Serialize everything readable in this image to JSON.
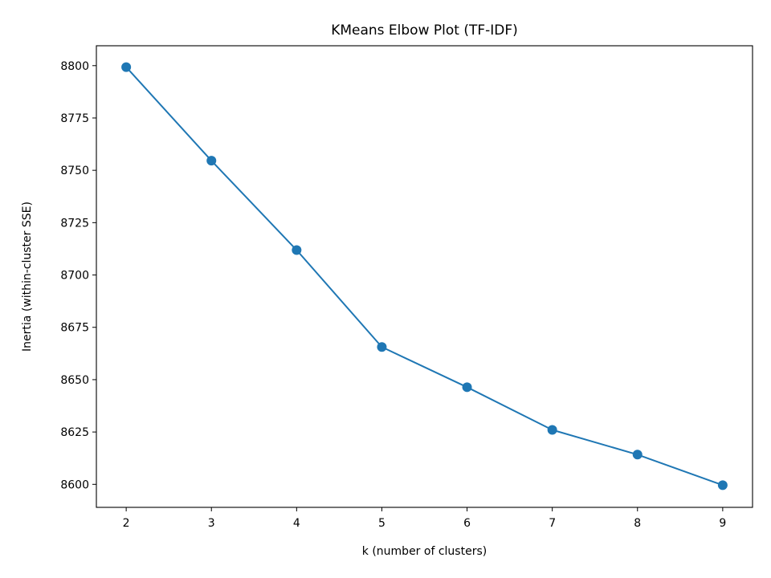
{
  "chart_data": {
    "type": "line",
    "title": "KMeans Elbow Plot (TF-IDF)",
    "xlabel": "k (number of clusters)",
    "ylabel": "Inertia (within-cluster SSE)",
    "x": [
      2,
      3,
      4,
      5,
      6,
      7,
      8,
      9
    ],
    "series": [
      {
        "values": [
          8799.3,
          8754.6,
          8711.9,
          8665.6,
          8646.4,
          8626.0,
          8614.2,
          8599.6
        ],
        "color": "#1f77b4",
        "marker": "circle"
      }
    ],
    "xlim": [
      1.65,
      9.35
    ],
    "ylim": [
      8589.0,
      8809.5
    ],
    "xticks": [
      2,
      3,
      4,
      5,
      6,
      7,
      8,
      9
    ],
    "yticks": [
      8600,
      8625,
      8650,
      8675,
      8700,
      8725,
      8750,
      8775,
      8800
    ],
    "grid": false,
    "legend": "none"
  }
}
